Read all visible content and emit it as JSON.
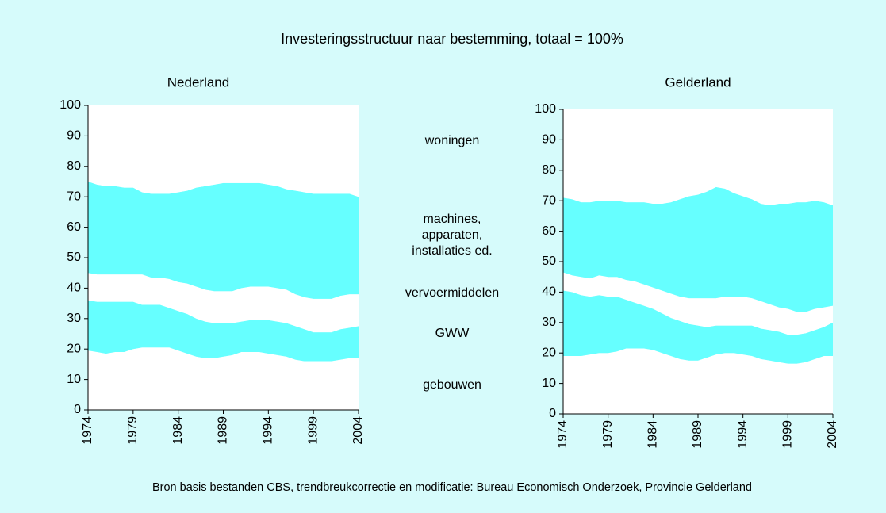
{
  "title": "Investeringsstructuur naar bestemming, totaal = 100%",
  "source": "Bron basis bestanden CBS, trendbreukcorrectie en modificatie: Bureau Economisch Onderzoek, Provincie Gelderland",
  "chart_data": [
    {
      "type": "area",
      "stacked": true,
      "title": "Nederland",
      "x": [
        1974,
        1975,
        1976,
        1977,
        1978,
        1979,
        1980,
        1981,
        1982,
        1983,
        1984,
        1985,
        1986,
        1987,
        1988,
        1989,
        1990,
        1991,
        1992,
        1993,
        1994,
        1995,
        1996,
        1997,
        1998,
        1999,
        2000,
        2001,
        2002,
        2003,
        2004
      ],
      "xlim": [
        1974,
        2004
      ],
      "xticks": [
        1974,
        1979,
        1984,
        1989,
        1994,
        1999,
        2004
      ],
      "ylim": [
        0,
        100
      ],
      "yticks": [
        0,
        10,
        20,
        30,
        40,
        50,
        60,
        70,
        80,
        90,
        100
      ],
      "series": [
        {
          "name": "gebouwen",
          "color": "#ffffff",
          "values": [
            19.5,
            19,
            18.5,
            19,
            19,
            20,
            20.5,
            20.5,
            20.5,
            20.5,
            19.5,
            18.5,
            17.5,
            17,
            17,
            17.5,
            18,
            19,
            19,
            19,
            18.5,
            18,
            17.5,
            16.5,
            16,
            16,
            16,
            16,
            16.5,
            17,
            17
          ]
        },
        {
          "name": "GWW",
          "color": "#66ffff",
          "values": [
            16.5,
            16.5,
            17,
            16.5,
            16.5,
            15.5,
            14,
            14,
            14,
            13,
            13,
            13,
            12.5,
            12,
            11.5,
            11,
            10.5,
            10,
            10.5,
            10.5,
            11,
            11,
            11,
            11,
            10.5,
            9.5,
            9.5,
            9.5,
            10,
            10,
            10.5
          ]
        },
        {
          "name": "vervoermiddelen",
          "color": "#ffffff",
          "values": [
            9,
            9,
            9,
            9,
            9,
            9,
            10,
            9,
            9,
            9.5,
            9.5,
            10,
            10.5,
            10.5,
            10.5,
            10.5,
            10.5,
            11,
            11,
            11,
            11,
            11,
            11,
            10.5,
            10.5,
            11,
            11,
            11,
            11,
            11,
            10.5
          ]
        },
        {
          "name": "machines, apparaten, installaties ed.",
          "color": "#66ffff",
          "values": [
            30,
            29.5,
            29,
            29,
            28.5,
            28.5,
            27,
            27.5,
            27.5,
            28,
            29.5,
            30.5,
            32.5,
            34,
            35,
            35.5,
            35.5,
            34.5,
            34,
            34,
            33.5,
            33.5,
            33,
            34,
            34.5,
            34.5,
            34.5,
            34.5,
            33.5,
            33,
            32
          ]
        },
        {
          "name": "woningen",
          "color": "#ffffff",
          "values": [
            25,
            26,
            26.5,
            26.5,
            27,
            27,
            28.5,
            29,
            29,
            29,
            28.5,
            28,
            27,
            26.5,
            26,
            25.5,
            25.5,
            25.5,
            25.5,
            25.5,
            26,
            26.5,
            27.5,
            28,
            28.5,
            29,
            29,
            29,
            29,
            29,
            30
          ]
        }
      ]
    },
    {
      "type": "area",
      "stacked": true,
      "title": "Gelderland",
      "x": [
        1974,
        1975,
        1976,
        1977,
        1978,
        1979,
        1980,
        1981,
        1982,
        1983,
        1984,
        1985,
        1986,
        1987,
        1988,
        1989,
        1990,
        1991,
        1992,
        1993,
        1994,
        1995,
        1996,
        1997,
        1998,
        1999,
        2000,
        2001,
        2002,
        2003,
        2004
      ],
      "xlim": [
        1974,
        2004
      ],
      "xticks": [
        1974,
        1979,
        1984,
        1989,
        1994,
        1999,
        2004
      ],
      "ylim": [
        0,
        100
      ],
      "yticks": [
        0,
        10,
        20,
        30,
        40,
        50,
        60,
        70,
        80,
        90,
        100
      ],
      "series": [
        {
          "color": "#ffffff",
          "values": [
            19,
            19,
            19,
            19.5,
            20,
            20,
            20.5,
            21.5,
            21.5,
            21.5,
            21,
            20,
            19,
            18,
            17.5,
            17.5,
            18.5,
            19.5,
            20,
            20,
            19.5,
            19,
            18,
            17.5,
            17,
            16.5,
            16.5,
            17,
            18,
            19,
            19
          ]
        },
        {
          "color": "#66ffff",
          "values": [
            21.5,
            21,
            20,
            19,
            19,
            18.5,
            18,
            16,
            15,
            14,
            13.5,
            13,
            12.5,
            12.5,
            12,
            11.5,
            10,
            9.5,
            9,
            9,
            9.5,
            10,
            10,
            10,
            10,
            9.5,
            9.5,
            9.5,
            9.5,
            9.5,
            11
          ]
        },
        {
          "color": "#ffffff",
          "values": [
            6,
            5.5,
            6,
            6,
            6.5,
            6.5,
            6.5,
            6.5,
            7,
            7,
            7,
            7.5,
            8,
            8,
            8.5,
            9,
            9.5,
            9,
            9.5,
            9.5,
            9.5,
            9,
            9,
            8.5,
            8,
            8.5,
            7.5,
            7,
            7,
            6.5,
            5.5
          ]
        },
        {
          "color": "#66ffff",
          "values": [
            24.5,
            25,
            24.5,
            25,
            24.5,
            25,
            25,
            25.5,
            26,
            27,
            27.5,
            28.5,
            30,
            32,
            33.5,
            34,
            35,
            36.5,
            35.5,
            34,
            33,
            32.5,
            32,
            32.5,
            34,
            34.5,
            36,
            36,
            35.5,
            34.5,
            33
          ]
        },
        {
          "color": "#ffffff",
          "values": [
            29,
            29.5,
            30.5,
            30.5,
            30,
            30,
            30,
            30.5,
            30.5,
            30.5,
            31,
            31,
            30.5,
            29.5,
            28.5,
            28,
            27,
            25.5,
            26,
            27.5,
            28.5,
            29.5,
            31,
            31.5,
            31,
            31,
            30.5,
            30.5,
            30,
            30.5,
            31.5
          ]
        }
      ]
    }
  ]
}
